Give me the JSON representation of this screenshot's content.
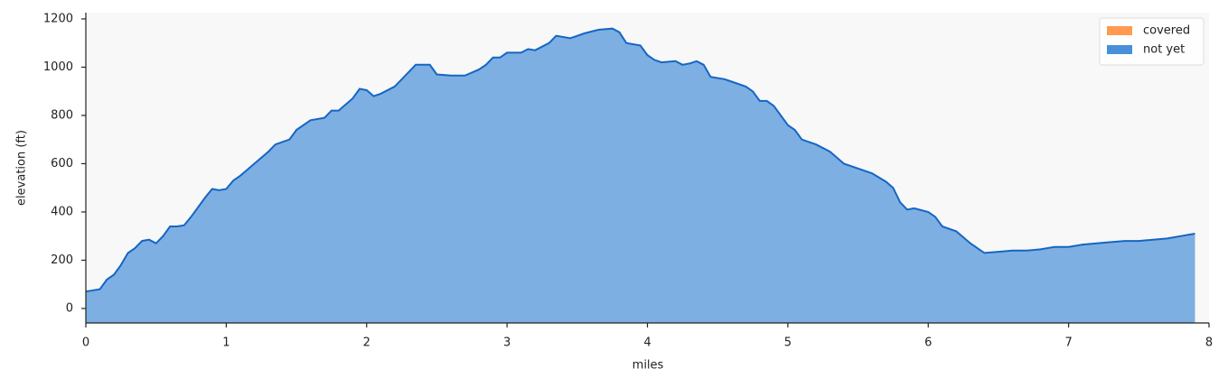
{
  "chart_data": {
    "type": "area",
    "xlabel": "miles",
    "ylabel": "elevation (ft)",
    "xlim": [
      0,
      8
    ],
    "xticks": [
      0,
      1,
      2,
      3,
      4,
      5,
      6,
      7,
      8
    ],
    "ylim": [
      -60,
      1226
    ],
    "yticks": [
      0,
      200,
      400,
      600,
      800,
      1000,
      1200
    ],
    "legend": "upper right",
    "series": [
      {
        "name": "covered",
        "color": "#ff9a50",
        "x": [],
        "values": []
      },
      {
        "name": "not yet",
        "color": "#4a90d9",
        "x": [
          0,
          0.1,
          0.15,
          0.2,
          0.25,
          0.3,
          0.35,
          0.4,
          0.45,
          0.5,
          0.55,
          0.6,
          0.65,
          0.7,
          0.75,
          0.8,
          0.85,
          0.9,
          0.95,
          1.0,
          1.05,
          1.1,
          1.15,
          1.2,
          1.3,
          1.35,
          1.45,
          1.5,
          1.6,
          1.7,
          1.75,
          1.8,
          1.9,
          1.95,
          2.0,
          2.05,
          2.1,
          2.2,
          2.3,
          2.35,
          2.45,
          2.5,
          2.6,
          2.7,
          2.8,
          2.85,
          2.9,
          2.95,
          3.0,
          3.1,
          3.15,
          3.2,
          3.3,
          3.35,
          3.45,
          3.55,
          3.65,
          3.75,
          3.8,
          3.85,
          3.95,
          4.0,
          4.05,
          4.1,
          4.2,
          4.25,
          4.3,
          4.35,
          4.4,
          4.45,
          4.55,
          4.6,
          4.7,
          4.75,
          4.8,
          4.85,
          4.9,
          4.95,
          5.0,
          5.05,
          5.1,
          5.2,
          5.3,
          5.4,
          5.5,
          5.6,
          5.7,
          5.75,
          5.8,
          5.85,
          5.9,
          6.0,
          6.05,
          6.1,
          6.2,
          6.3,
          6.35,
          6.4,
          6.5,
          6.6,
          6.7,
          6.8,
          6.9,
          7.0,
          7.1,
          7.2,
          7.3,
          7.4,
          7.5,
          7.6,
          7.7,
          7.8,
          7.9
        ],
        "values": [
          70,
          80,
          120,
          140,
          180,
          230,
          250,
          280,
          285,
          270,
          300,
          340,
          340,
          345,
          380,
          420,
          460,
          495,
          490,
          495,
          530,
          550,
          575,
          600,
          650,
          680,
          700,
          740,
          780,
          790,
          820,
          820,
          870,
          910,
          905,
          880,
          890,
          920,
          980,
          1010,
          1010,
          970,
          965,
          965,
          990,
          1010,
          1040,
          1040,
          1060,
          1060,
          1075,
          1070,
          1100,
          1130,
          1120,
          1140,
          1155,
          1160,
          1145,
          1100,
          1090,
          1050,
          1030,
          1020,
          1025,
          1010,
          1015,
          1025,
          1010,
          960,
          950,
          940,
          920,
          900,
          860,
          860,
          840,
          800,
          760,
          740,
          700,
          680,
          650,
          600,
          580,
          560,
          525,
          500,
          440,
          410,
          415,
          400,
          380,
          340,
          320,
          270,
          250,
          230,
          235,
          240,
          240,
          245,
          255,
          255,
          265,
          270,
          275,
          280,
          280,
          285,
          290,
          300,
          310
        ]
      }
    ]
  }
}
